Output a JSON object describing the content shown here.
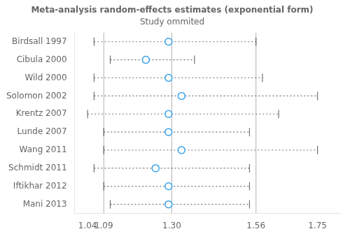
{
  "chart_data": {
    "type": "forest",
    "title": "Meta-analysis random-effects estimates (exponential form)",
    "subtitle": "Study ommited",
    "categories": [
      "Birdsall 1997",
      "Cibula 2000",
      "Wild 2000",
      "Solomon 2002",
      "Krentz 2007",
      "Lunde 2007",
      "Wang 2011",
      "Schmidt 2011",
      "Iftikhar 2012",
      "Mani 2013"
    ],
    "values": [
      1.29,
      1.22,
      1.29,
      1.33,
      1.29,
      1.29,
      1.33,
      1.25,
      1.29,
      1.29
    ],
    "ci_low": [
      1.06,
      1.11,
      1.06,
      1.06,
      1.04,
      1.09,
      1.09,
      1.06,
      1.09,
      1.11
    ],
    "ci_high": [
      1.56,
      1.37,
      1.58,
      1.75,
      1.63,
      1.54,
      1.75,
      1.54,
      1.54,
      1.54
    ],
    "reference_lines": [
      1.09,
      1.3,
      1.56
    ],
    "xlim": [
      1.0,
      1.82
    ],
    "xticks": [
      1.04,
      1.09,
      {
        "value": 1.3,
        "label": "1.30"
      },
      1.56,
      1.75
    ],
    "grid": false
  }
}
